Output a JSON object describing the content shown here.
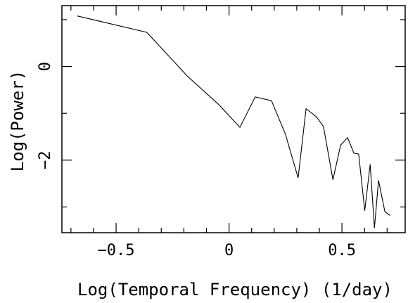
{
  "chart_data": {
    "type": "line",
    "title": "",
    "xlabel": "Log(Temporal Frequency) (1/day)",
    "ylabel": "Log(Power)",
    "xlim": [
      -0.74,
      0.78
    ],
    "ylim": [
      -3.55,
      1.3
    ],
    "x_ticks": [
      {
        "value": -0.5,
        "label": "−0.5"
      },
      {
        "value": 0,
        "label": "0"
      },
      {
        "value": 0.5,
        "label": "0.5"
      }
    ],
    "x_minor_step": 0.1,
    "y_ticks": [
      {
        "value": 0,
        "label": "0"
      },
      {
        "value": -2,
        "label": "−2"
      }
    ],
    "y_minor_step": 1,
    "grid": false,
    "legend": "none",
    "line_color": "#000000",
    "series": [
      {
        "x": [
          -0.672,
          -0.364,
          -0.186,
          -0.044,
          0.048,
          0.116,
          0.188,
          0.25,
          0.306,
          0.341,
          0.388,
          0.418,
          0.46,
          0.494,
          0.525,
          0.553,
          0.574,
          0.601,
          0.625,
          0.644,
          0.662,
          0.69,
          0.713
        ],
        "y": [
          1.08,
          0.73,
          -0.2,
          -0.82,
          -1.3,
          -0.65,
          -0.73,
          -1.45,
          -2.38,
          -0.9,
          -1.08,
          -1.28,
          -2.42,
          -1.68,
          -1.52,
          -1.85,
          -1.87,
          -3.08,
          -2.09,
          -3.45,
          -2.43,
          -3.1,
          -3.18
        ]
      }
    ]
  }
}
